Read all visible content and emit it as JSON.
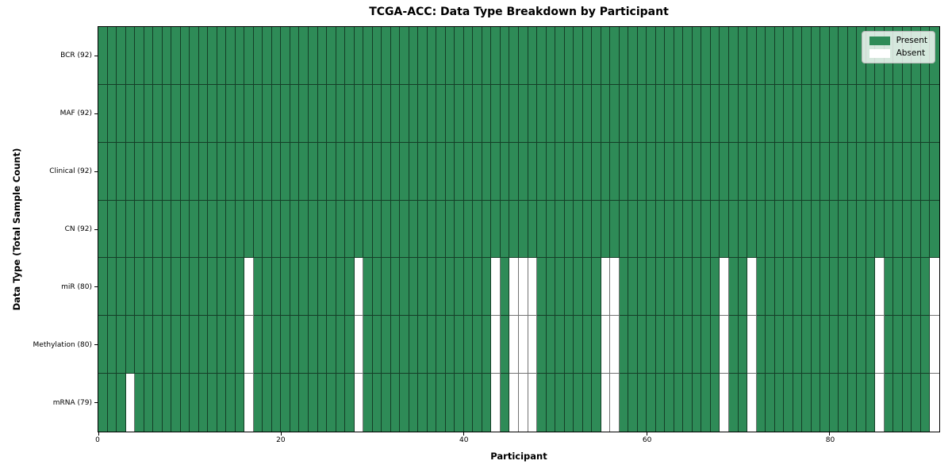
{
  "title": "TCGA-ACC: Data Type Breakdown by Participant",
  "axes": {
    "xlabel": "Participant",
    "ylabel": "Data Type (Total Sample Count)"
  },
  "legend": [
    {
      "label": "Present",
      "color": "#2e8b57"
    },
    {
      "label": "Absent",
      "color": "#ffffff"
    }
  ],
  "chart_data": {
    "type": "heatmap",
    "title": "TCGA-ACC: Data Type Breakdown by Participant",
    "xlabel": "Participant",
    "ylabel": "Data Type (Total Sample Count)",
    "n_participants": 92,
    "x_ticks": [
      0,
      20,
      40,
      60,
      80
    ],
    "grid_on": true,
    "legend_position": "upper right",
    "colors": {
      "present": "#2e8b57",
      "absent": "#ffffff",
      "gridline": "rgba(0,0,0,0.55)"
    },
    "rows": [
      {
        "label": "BCR (92)",
        "data_type": "BCR",
        "present_count": 92,
        "absent_participants": []
      },
      {
        "label": "MAF (92)",
        "data_type": "MAF",
        "present_count": 92,
        "absent_participants": []
      },
      {
        "label": "Clinical (92)",
        "data_type": "Clinical",
        "present_count": 92,
        "absent_participants": []
      },
      {
        "label": "CN (92)",
        "data_type": "CN",
        "present_count": 92,
        "absent_participants": []
      },
      {
        "label": "miR (80)",
        "data_type": "miR",
        "present_count": 80,
        "absent_participants": [
          16,
          28,
          43,
          45,
          46,
          47,
          55,
          56,
          68,
          71,
          85,
          91
        ]
      },
      {
        "label": "Methylation (80)",
        "data_type": "Methylation",
        "present_count": 80,
        "absent_participants": [
          16,
          28,
          43,
          45,
          46,
          47,
          55,
          56,
          68,
          71,
          85,
          91
        ]
      },
      {
        "label": "mRNA (79)",
        "data_type": "mRNA",
        "present_count": 79,
        "absent_participants": [
          3,
          16,
          28,
          43,
          45,
          46,
          47,
          55,
          56,
          68,
          71,
          85,
          91
        ]
      }
    ]
  }
}
